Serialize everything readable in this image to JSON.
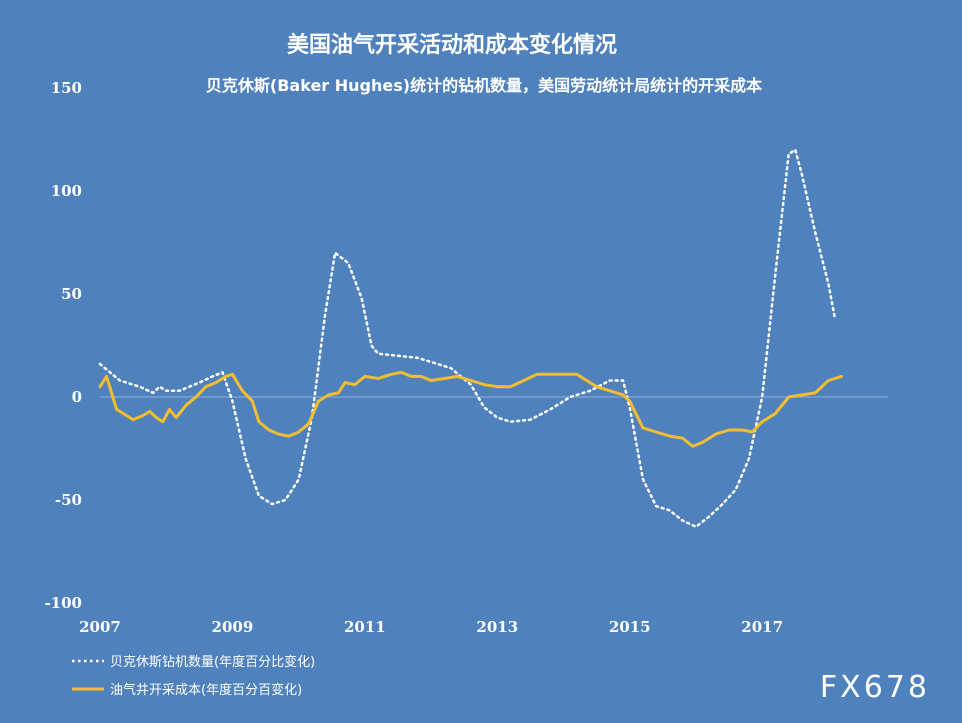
{
  "chart_data": {
    "type": "line",
    "title": "美国油气开采活动和成本变化情况",
    "subtitle": "贝克休斯(Baker Hughes)统计的钻机数量，美国劳动统计局统计的开采成本",
    "x_ticks": [
      "2007",
      "2009",
      "2011",
      "2013",
      "2015",
      "2017"
    ],
    "y_ticks": [
      "150",
      "100",
      "50",
      "0",
      "-50",
      "-100"
    ],
    "xlim": [
      2007.0,
      2018.9
    ],
    "ylim": [
      -100,
      150
    ],
    "grid": false,
    "legend_position": "bottom-left",
    "series": [
      {
        "name": "贝克休斯钻机数量(年度百分比变化)",
        "style": "dotted",
        "color": "#ffffff",
        "points": [
          [
            2007.0,
            16
          ],
          [
            2007.3,
            8
          ],
          [
            2007.6,
            5
          ],
          [
            2007.8,
            2
          ],
          [
            2007.9,
            5
          ],
          [
            2008.0,
            3
          ],
          [
            2008.2,
            3
          ],
          [
            2008.5,
            7
          ],
          [
            2008.7,
            10
          ],
          [
            2008.85,
            12
          ],
          [
            2009.0,
            -2
          ],
          [
            2009.2,
            -30
          ],
          [
            2009.4,
            -48
          ],
          [
            2009.6,
            -52
          ],
          [
            2009.8,
            -50
          ],
          [
            2010.0,
            -40
          ],
          [
            2010.2,
            -10
          ],
          [
            2010.4,
            40
          ],
          [
            2010.55,
            70
          ],
          [
            2010.75,
            65
          ],
          [
            2010.95,
            48
          ],
          [
            2011.1,
            25
          ],
          [
            2011.2,
            21
          ],
          [
            2011.5,
            20
          ],
          [
            2011.8,
            19
          ],
          [
            2012.1,
            16
          ],
          [
            2012.3,
            14
          ],
          [
            2012.6,
            6
          ],
          [
            2012.8,
            -5
          ],
          [
            2013.0,
            -10
          ],
          [
            2013.2,
            -12
          ],
          [
            2013.5,
            -11
          ],
          [
            2013.8,
            -6
          ],
          [
            2014.1,
            0
          ],
          [
            2014.4,
            3
          ],
          [
            2014.7,
            8
          ],
          [
            2014.9,
            8
          ],
          [
            2015.0,
            -5
          ],
          [
            2015.2,
            -40
          ],
          [
            2015.4,
            -53
          ],
          [
            2015.6,
            -55
          ],
          [
            2015.8,
            -60
          ],
          [
            2016.0,
            -63
          ],
          [
            2016.2,
            -58
          ],
          [
            2016.4,
            -52
          ],
          [
            2016.6,
            -45
          ],
          [
            2016.8,
            -30
          ],
          [
            2017.0,
            0
          ],
          [
            2017.2,
            60
          ],
          [
            2017.4,
            118
          ],
          [
            2017.5,
            120
          ],
          [
            2017.6,
            108
          ],
          [
            2017.8,
            80
          ],
          [
            2018.0,
            55
          ],
          [
            2018.1,
            38
          ]
        ]
      },
      {
        "name": "油气井开采成本(年度百分百变化)",
        "style": "solid",
        "color": "#f2be2f",
        "points": [
          [
            2007.0,
            5
          ],
          [
            2007.1,
            10
          ],
          [
            2007.25,
            -6
          ],
          [
            2007.4,
            -9
          ],
          [
            2007.5,
            -11
          ],
          [
            2007.65,
            -9
          ],
          [
            2007.75,
            -7
          ],
          [
            2007.85,
            -10
          ],
          [
            2007.95,
            -12
          ],
          [
            2008.05,
            -6
          ],
          [
            2008.15,
            -10
          ],
          [
            2008.3,
            -4
          ],
          [
            2008.45,
            0
          ],
          [
            2008.6,
            5
          ],
          [
            2008.75,
            7
          ],
          [
            2008.9,
            10
          ],
          [
            2009.0,
            11
          ],
          [
            2009.15,
            3
          ],
          [
            2009.3,
            -2
          ],
          [
            2009.4,
            -12
          ],
          [
            2009.55,
            -16
          ],
          [
            2009.7,
            -18
          ],
          [
            2009.85,
            -19
          ],
          [
            2010.0,
            -17
          ],
          [
            2010.15,
            -13
          ],
          [
            2010.3,
            -2
          ],
          [
            2010.45,
            1
          ],
          [
            2010.6,
            2
          ],
          [
            2010.7,
            7
          ],
          [
            2010.85,
            6
          ],
          [
            2011.0,
            10
          ],
          [
            2011.2,
            9
          ],
          [
            2011.4,
            11
          ],
          [
            2011.55,
            12
          ],
          [
            2011.7,
            10
          ],
          [
            2011.85,
            10
          ],
          [
            2012.0,
            8
          ],
          [
            2012.2,
            9
          ],
          [
            2012.4,
            10
          ],
          [
            2012.6,
            8
          ],
          [
            2012.8,
            6
          ],
          [
            2013.0,
            5
          ],
          [
            2013.2,
            5
          ],
          [
            2013.4,
            8
          ],
          [
            2013.6,
            11
          ],
          [
            2013.8,
            11
          ],
          [
            2014.0,
            11
          ],
          [
            2014.2,
            11
          ],
          [
            2014.35,
            8
          ],
          [
            2014.5,
            5
          ],
          [
            2014.7,
            3
          ],
          [
            2014.9,
            1
          ],
          [
            2015.0,
            -2
          ],
          [
            2015.2,
            -15
          ],
          [
            2015.4,
            -17
          ],
          [
            2015.6,
            -19
          ],
          [
            2015.8,
            -20
          ],
          [
            2015.95,
            -24
          ],
          [
            2016.1,
            -22
          ],
          [
            2016.3,
            -18
          ],
          [
            2016.5,
            -16
          ],
          [
            2016.7,
            -16
          ],
          [
            2016.85,
            -17
          ],
          [
            2017.0,
            -12
          ],
          [
            2017.2,
            -8
          ],
          [
            2017.4,
            0
          ],
          [
            2017.6,
            1
          ],
          [
            2017.8,
            2
          ],
          [
            2017.9,
            5
          ],
          [
            2018.0,
            8
          ],
          [
            2018.1,
            9
          ],
          [
            2018.2,
            10
          ]
        ]
      }
    ]
  },
  "watermark": "FX678"
}
